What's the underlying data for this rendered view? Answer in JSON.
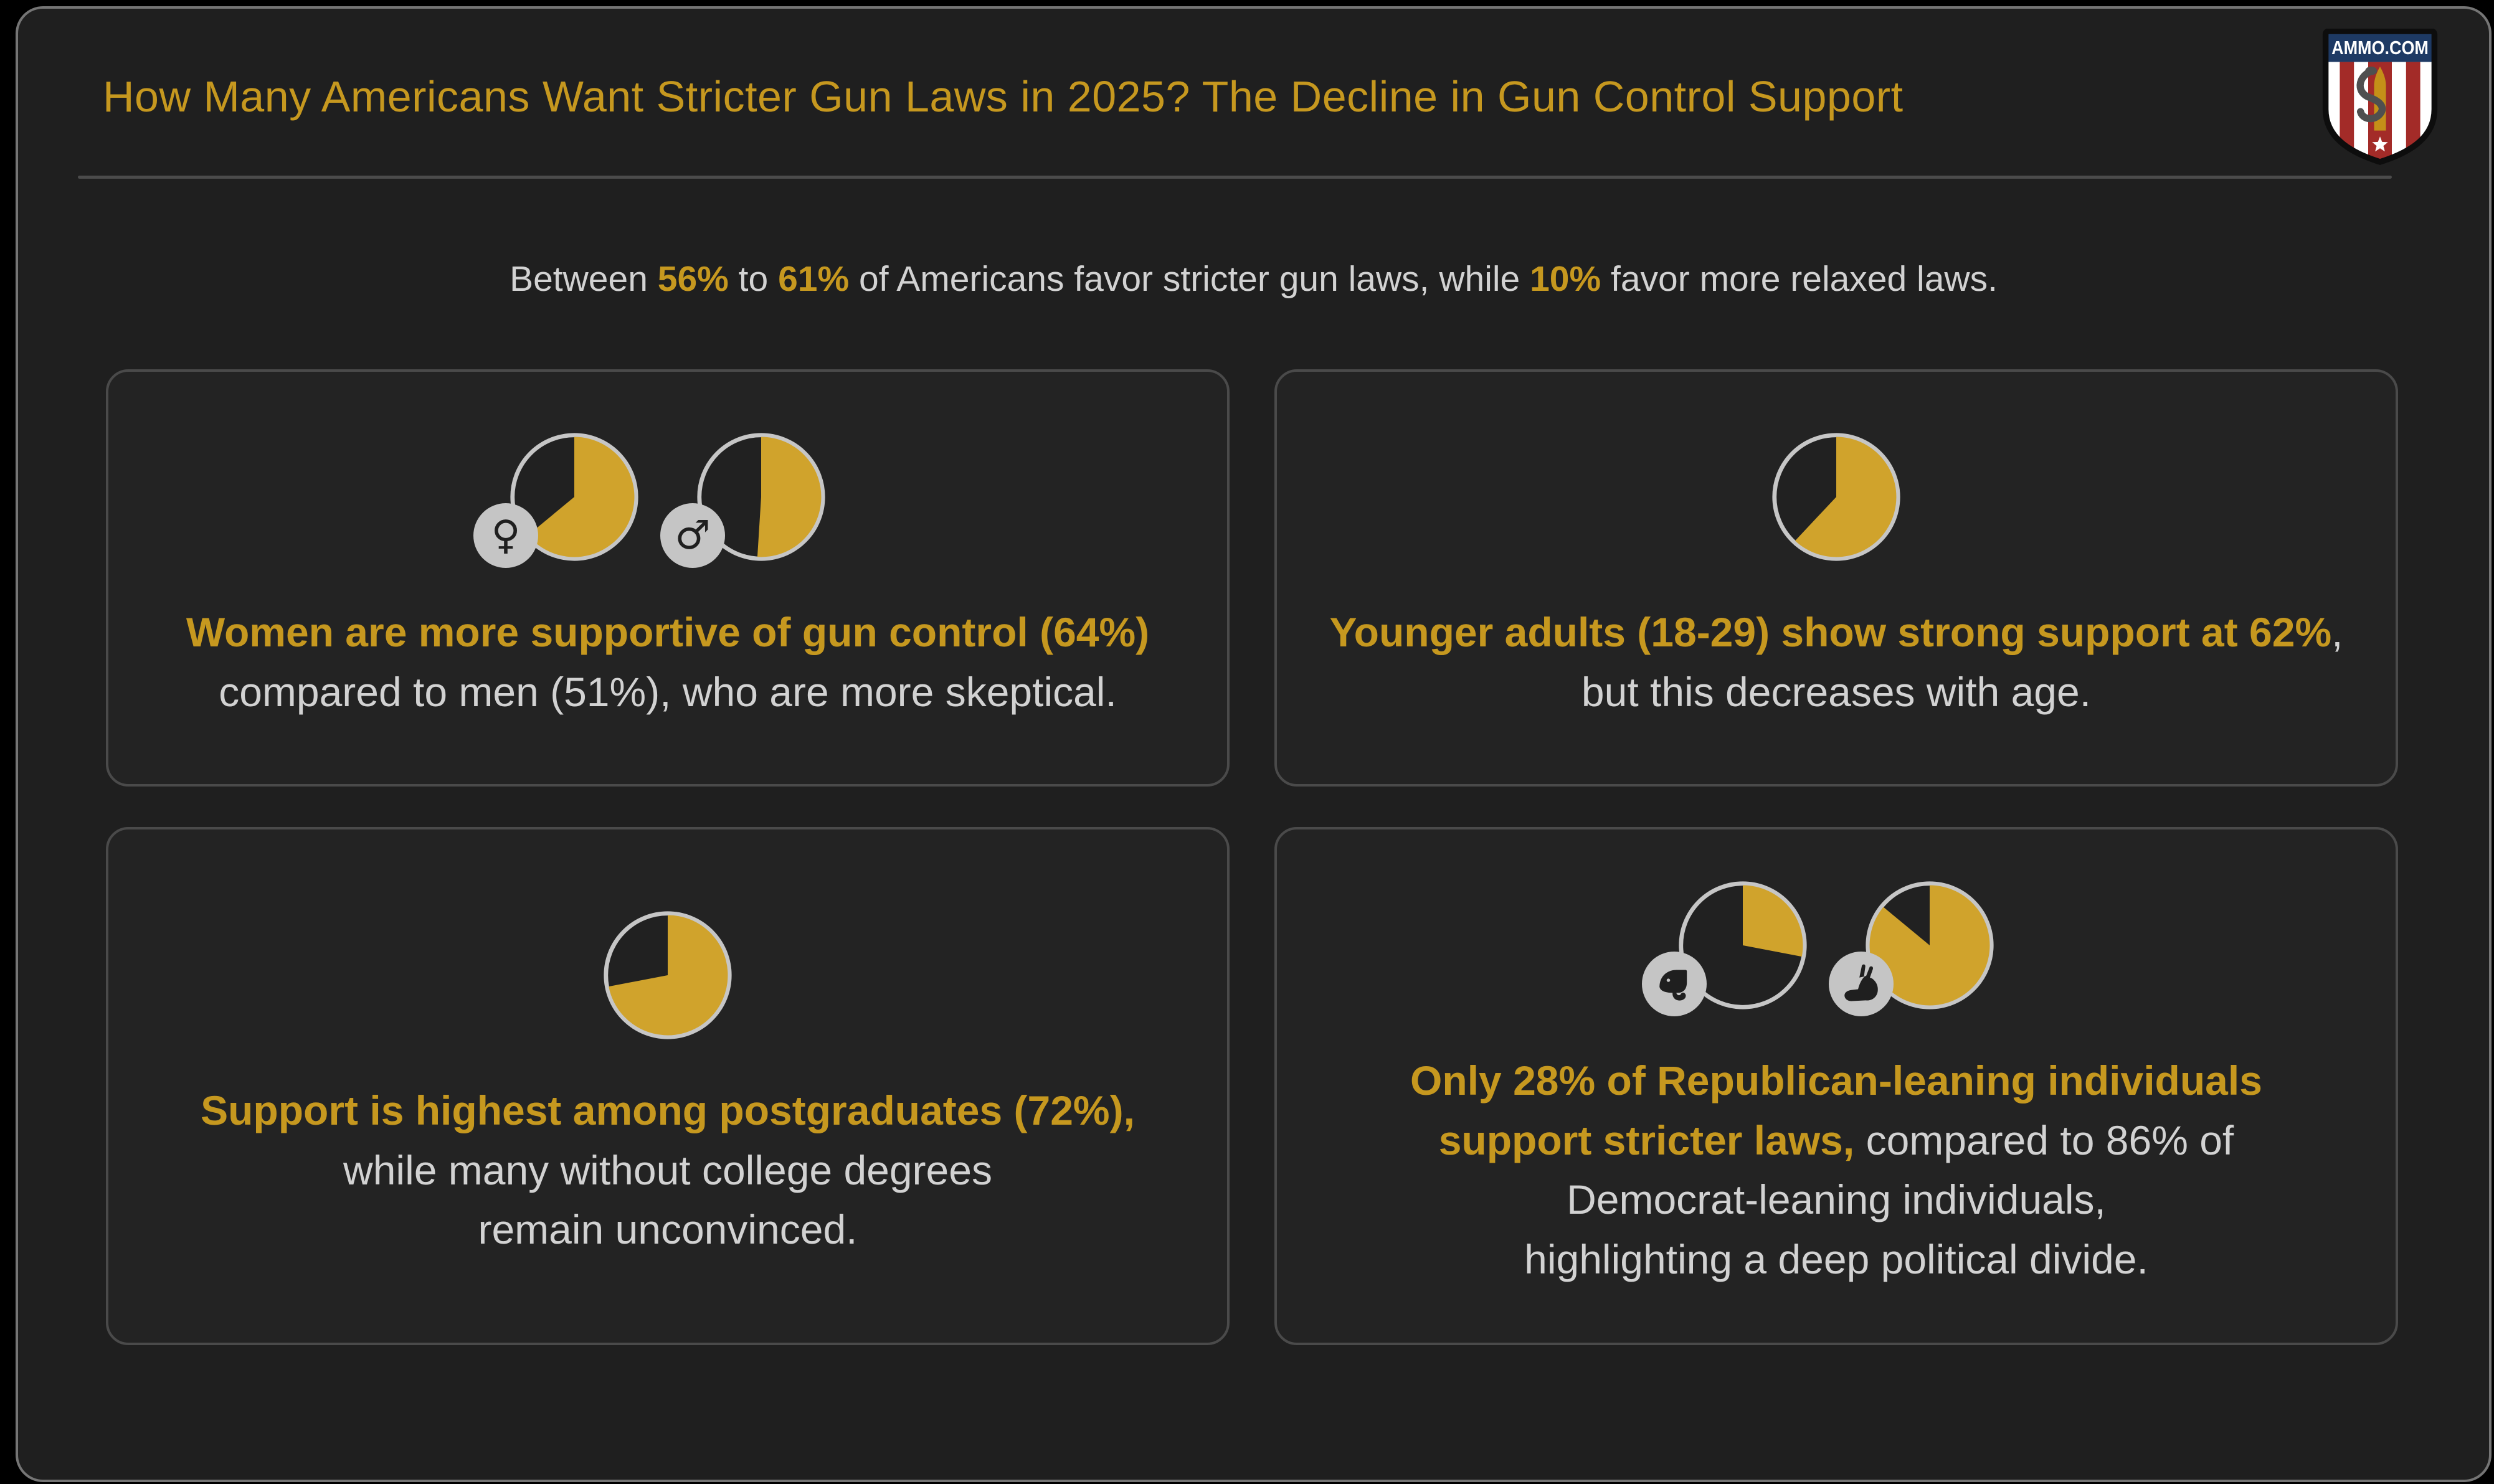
{
  "theme": {
    "gold": "#c6981f",
    "pie_gold": "#d0a32c",
    "pie_bg": "#212121",
    "pie_ring": "#c6c6c6",
    "text_gray": "#d2d2d2",
    "panel_bg": "#1f1f1f",
    "panel_border": "#757575",
    "card_bg": "#232323",
    "card_border": "#4a4a4a",
    "divider": "#4b4b4b",
    "badge_bg": "#c5c5c5",
    "badge_glyph": "#1f1f1f"
  },
  "header": {
    "title": "How Many Americans Want Stricter Gun Laws in 2025? The Decline in Gun Control Support",
    "logo_text": "AMMO.COM"
  },
  "subtitle": {
    "segments": [
      {
        "t": "Between ",
        "s": "gray"
      },
      {
        "t": "56%",
        "s": "gold"
      },
      {
        "t": " to ",
        "s": "gray"
      },
      {
        "t": "61%",
        "s": "gold"
      },
      {
        "t": " of Americans favor stricter gun laws, while ",
        "s": "gray"
      },
      {
        "t": "10%",
        "s": "gold"
      },
      {
        "t": " favor more relaxed laws.",
        "s": "gray"
      }
    ]
  },
  "cards": [
    {
      "topic": "gender",
      "pies": [
        {
          "icon": "female-icon",
          "percent": 64
        },
        {
          "icon": "male-icon",
          "percent": 51
        }
      ],
      "lines": [
        [
          {
            "t": "Women are more supportive of gun control (64%)",
            "s": "gold"
          }
        ],
        [
          {
            "t": "compared to men (51%), who are more skeptical.",
            "s": "gray"
          }
        ]
      ]
    },
    {
      "topic": "age",
      "pies": [
        {
          "icon": null,
          "percent": 62
        }
      ],
      "lines": [
        [
          {
            "t": "Younger adults (18-29) show strong support at 62%",
            "s": "gold"
          },
          {
            "t": ",",
            "s": "gray"
          }
        ],
        [
          {
            "t": "but this decreases with age.",
            "s": "gray"
          }
        ]
      ]
    },
    {
      "topic": "education",
      "pies": [
        {
          "icon": null,
          "percent": 72
        }
      ],
      "lines": [
        [
          {
            "t": "Support is highest among postgraduates (72%),",
            "s": "gold"
          }
        ],
        [
          {
            "t": "while many without college degrees",
            "s": "gray"
          }
        ],
        [
          {
            "t": "remain unconvinced.",
            "s": "gray"
          }
        ]
      ]
    },
    {
      "topic": "party",
      "pies": [
        {
          "icon": "elephant-icon",
          "percent": 28
        },
        {
          "icon": "donkey-icon",
          "percent": 86
        }
      ],
      "lines": [
        [
          {
            "t": "Only 28% of Republican-leaning individuals",
            "s": "gold"
          }
        ],
        [
          {
            "t": "support stricter laws,",
            "s": "gold"
          },
          {
            "t": " compared to 86% of",
            "s": "gray"
          }
        ],
        [
          {
            "t": "Democrat-leaning individuals,",
            "s": "gray"
          }
        ],
        [
          {
            "t": "highlighting a deep political divide.",
            "s": "gray"
          }
        ]
      ]
    }
  ],
  "chart_data": {
    "type": "pie",
    "unit": "%",
    "note": "Each pie shows share favoring stricter gun laws (gold) vs remainder (dark)",
    "series": [
      {
        "name": "Women",
        "icon": "female-icon",
        "percent": 64
      },
      {
        "name": "Men",
        "icon": "male-icon",
        "percent": 51
      },
      {
        "name": "Younger adults (18-29)",
        "icon": null,
        "percent": 62
      },
      {
        "name": "Postgraduates",
        "icon": null,
        "percent": 72
      },
      {
        "name": "Republican-leaning",
        "icon": "elephant-icon",
        "percent": 28
      },
      {
        "name": "Democrat-leaning",
        "icon": "donkey-icon",
        "percent": 86
      }
    ],
    "highlight_color": "#d0a32c",
    "remainder_color": "#212121",
    "start_angle_deg": 0,
    "direction": "clockwise"
  }
}
